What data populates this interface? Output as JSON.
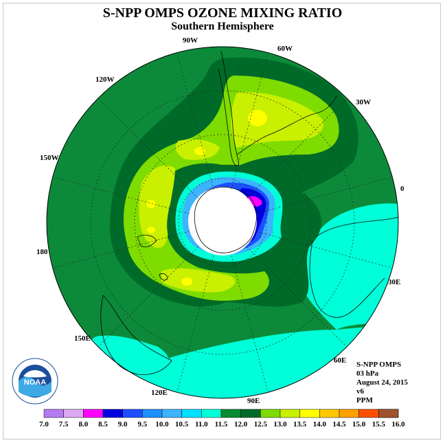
{
  "title": "S-NPP OMPS OZONE MIXING RATIO",
  "subtitle": "Southern Hemisphere",
  "longitude_labels": [
    {
      "id": "lon-90w",
      "text": "90W"
    },
    {
      "id": "lon-60w",
      "text": "60W"
    },
    {
      "id": "lon-30w",
      "text": "30W"
    },
    {
      "id": "lon-120w",
      "text": "120W"
    },
    {
      "id": "lon-150w",
      "text": "150W"
    },
    {
      "id": "lon-0",
      "text": "0"
    },
    {
      "id": "lon-180",
      "text": "180"
    },
    {
      "id": "lon-30e",
      "text": "30E"
    },
    {
      "id": "lon-150e",
      "text": "150E"
    },
    {
      "id": "lon-60e",
      "text": "60E"
    },
    {
      "id": "lon-120e",
      "text": "120E"
    },
    {
      "id": "lon-90e",
      "text": "90E"
    }
  ],
  "info": {
    "instrument": "S-NPP OMPS",
    "level": "03 hPa",
    "date": "August 24, 2015",
    "version": "v6",
    "units": "PPM"
  },
  "logo": {
    "text": "NOAA",
    "ring_text": "NATIONAL OCEANIC AND ATMOSPHERIC ADMINISTRATION · U.S. DEPARTMENT OF COMMERCE"
  },
  "colorbar": {
    "ticks": [
      "7.0",
      "7.5",
      "8.0",
      "8.5",
      "9.0",
      "9.5",
      "10.0",
      "10.5",
      "11.0",
      "11.5",
      "12.0",
      "12.5",
      "13.0",
      "13.5",
      "14.0",
      "14.5",
      "15.0",
      "15.5",
      "16.0"
    ],
    "colors": [
      "#b57bf0",
      "#dca8f2",
      "#ff00ff",
      "#0000e0",
      "#1c50ff",
      "#1e90ff",
      "#3cb4ff",
      "#00e0ff",
      "#00ffd8",
      "#0a8a32",
      "#006b28",
      "#7fdc00",
      "#c8f000",
      "#ffff00",
      "#ffc800",
      "#ffa000",
      "#ff5000",
      "#ff0000",
      "#a0522d"
    ]
  },
  "colors": {
    "ocean_green": "#0c8a3a",
    "dark_green": "#006b28",
    "light_green": "#7fdc00",
    "yellow_green": "#c8f000",
    "yellow": "#ffff00",
    "cyan": "#00ffd8",
    "blue": "#0000e0",
    "magenta": "#ff00ff"
  }
}
